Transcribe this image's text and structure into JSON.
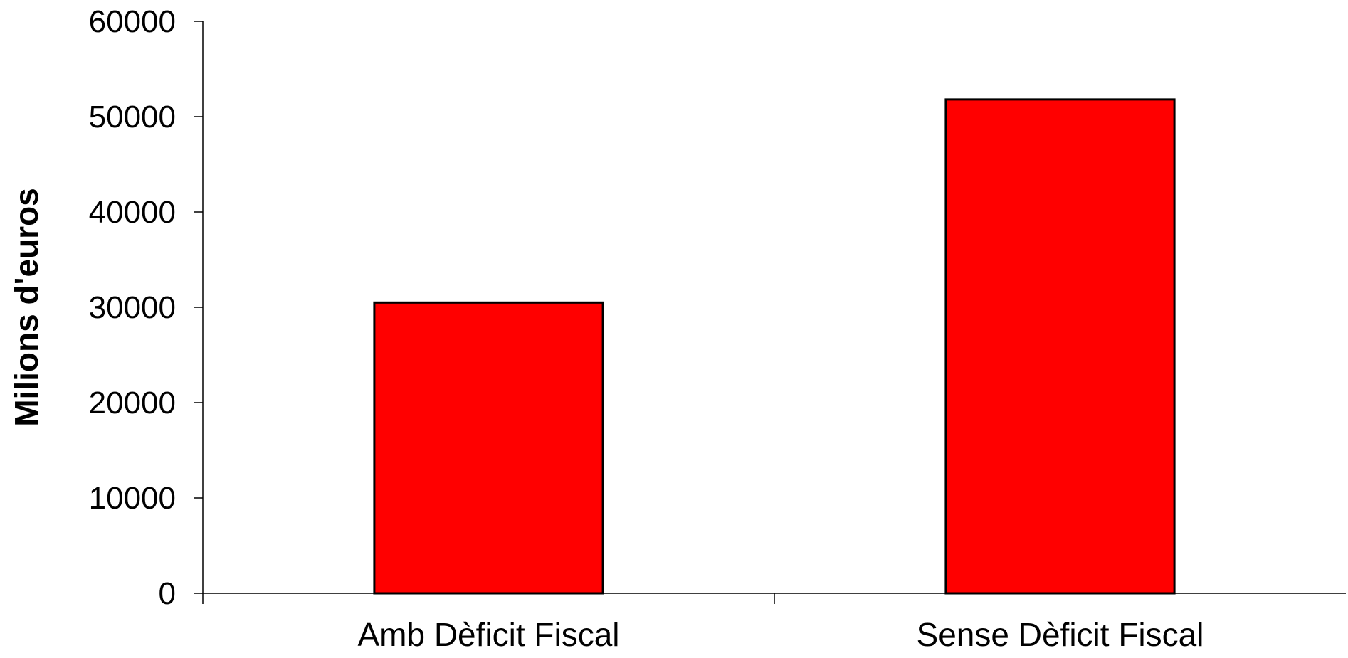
{
  "chart_data": {
    "type": "bar",
    "title": "",
    "xlabel": "",
    "ylabel": "Milions d'euros",
    "categories": [
      "Amb Dèficit Fiscal",
      "Sense Dèficit Fiscal"
    ],
    "values": [
      30500,
      51800
    ],
    "ylim": [
      0,
      60000
    ],
    "yticks": [
      0,
      10000,
      20000,
      30000,
      40000,
      50000,
      60000
    ],
    "ytick_labels": [
      "0",
      "10000",
      "20000",
      "30000",
      "40000",
      "50000",
      "60000"
    ],
    "grid": false,
    "legend": "none",
    "colors": {
      "bar_fill": "#ff0000",
      "bar_stroke": "#000000",
      "axis": "#000000"
    }
  }
}
